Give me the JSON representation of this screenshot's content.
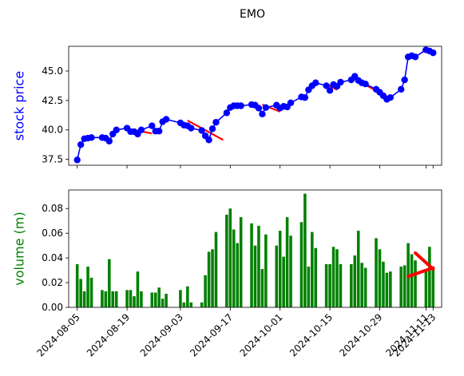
{
  "chart_data": [
    {
      "type": "line",
      "title": "EMO",
      "ylabel": "stock price",
      "ylabel_color": "#0000ff",
      "ylim": [
        37.0,
        47.1
      ],
      "yticks": [
        "37.5",
        "40.0",
        "42.5",
        "45.0"
      ],
      "ytick_values": [
        37.5,
        40.0,
        42.5,
        45.0
      ],
      "marker_color": "#0000ff",
      "line_color": "#0000ff",
      "trend_color": "#ff0000",
      "x": [
        "2024-08-05",
        "2024-08-06",
        "2024-08-07",
        "2024-08-08",
        "2024-08-09",
        "2024-08-12",
        "2024-08-13",
        "2024-08-14",
        "2024-08-15",
        "2024-08-16",
        "2024-08-19",
        "2024-08-20",
        "2024-08-21",
        "2024-08-22",
        "2024-08-23",
        "2024-08-26",
        "2024-08-27",
        "2024-08-28",
        "2024-08-29",
        "2024-08-30",
        "2024-09-03",
        "2024-09-04",
        "2024-09-05",
        "2024-09-06",
        "2024-09-09",
        "2024-09-10",
        "2024-09-11",
        "2024-09-12",
        "2024-09-13",
        "2024-09-16",
        "2024-09-17",
        "2024-09-18",
        "2024-09-19",
        "2024-09-20",
        "2024-09-23",
        "2024-09-24",
        "2024-09-25",
        "2024-09-26",
        "2024-09-27",
        "2024-09-30",
        "2024-10-01",
        "2024-10-02",
        "2024-10-03",
        "2024-10-04",
        "2024-10-07",
        "2024-10-08",
        "2024-10-09",
        "2024-10-10",
        "2024-10-11",
        "2024-10-14",
        "2024-10-15",
        "2024-10-16",
        "2024-10-17",
        "2024-10-18",
        "2024-10-21",
        "2024-10-22",
        "2024-10-23",
        "2024-10-24",
        "2024-10-25",
        "2024-10-28",
        "2024-10-29",
        "2024-10-30",
        "2024-10-31",
        "2024-11-01",
        "2024-11-04",
        "2024-11-05",
        "2024-11-06",
        "2024-11-07",
        "2024-11-08",
        "2024-11-11",
        "2024-11-12",
        "2024-11-13"
      ],
      "series": [
        {
          "values": [
            37.45,
            38.75,
            39.25,
            39.3,
            39.35,
            39.35,
            39.3,
            39.05,
            39.65,
            40.0,
            40.15,
            39.85,
            39.85,
            39.65,
            40.0,
            40.35,
            39.9,
            39.9,
            40.7,
            40.9,
            40.6,
            40.4,
            40.35,
            40.15,
            39.95,
            39.5,
            39.15,
            40.1,
            40.65,
            41.45,
            41.9,
            42.05,
            42.05,
            42.05,
            42.15,
            42.1,
            41.85,
            41.35,
            41.9,
            42.1,
            41.85,
            42.0,
            41.95,
            42.3,
            42.8,
            42.75,
            43.4,
            43.75,
            44.0,
            43.75,
            43.35,
            43.85,
            43.7,
            44.05,
            44.25,
            44.55,
            44.2,
            44.0,
            43.9,
            43.45,
            43.2,
            42.9,
            42.6,
            42.75,
            43.45,
            44.25,
            46.2,
            46.3,
            46.2,
            46.8,
            46.7,
            46.55
          ]
        }
      ],
      "trend_segments": [
        {
          "x0": "2024-08-20",
          "y0": 40.05,
          "x1": "2024-08-26",
          "y1": 39.7
        },
        {
          "x0": "2024-09-05",
          "y0": 40.8,
          "x1": "2024-09-15",
          "y1": 39.15
        },
        {
          "x0": "2024-09-26",
          "y0": 42.15,
          "x1": "2024-10-01",
          "y1": 41.55
        },
        {
          "x0": "2024-10-14",
          "y0": 43.9,
          "x1": "2024-10-17",
          "y1": 43.4
        },
        {
          "x0": "2024-10-22",
          "y0": 44.3,
          "x1": "2024-11-01",
          "y1": 42.7
        },
        {
          "x0": "2024-11-10",
          "y0": 46.75,
          "x1": "2024-11-13",
          "y1": 46.45
        }
      ]
    },
    {
      "type": "bar",
      "ylabel": "volume (m)",
      "ylabel_color": "#008000",
      "ylim": [
        0,
        0.095
      ],
      "yticks": [
        "0.00",
        "0.02",
        "0.04",
        "0.06",
        "0.08"
      ],
      "ytick_values": [
        0.0,
        0.02,
        0.04,
        0.06,
        0.08
      ],
      "bar_color": "#008000",
      "trend_color": "#ff0000",
      "xtick_labels": [
        "2024-08-05",
        "2024-08-19",
        "2024-09-03",
        "2024-09-17",
        "2024-10-01",
        "2024-10-15",
        "2024-10-29",
        "2024-11-11",
        "2024-11-13"
      ],
      "x": [
        "2024-08-05",
        "2024-08-06",
        "2024-08-07",
        "2024-08-08",
        "2024-08-09",
        "2024-08-12",
        "2024-08-13",
        "2024-08-14",
        "2024-08-15",
        "2024-08-16",
        "2024-08-19",
        "2024-08-20",
        "2024-08-21",
        "2024-08-22",
        "2024-08-23",
        "2024-08-26",
        "2024-08-27",
        "2024-08-28",
        "2024-08-29",
        "2024-08-30",
        "2024-09-03",
        "2024-09-04",
        "2024-09-05",
        "2024-09-06",
        "2024-09-09",
        "2024-09-10",
        "2024-09-11",
        "2024-09-12",
        "2024-09-13",
        "2024-09-16",
        "2024-09-17",
        "2024-09-18",
        "2024-09-19",
        "2024-09-20",
        "2024-09-23",
        "2024-09-24",
        "2024-09-25",
        "2024-09-26",
        "2024-09-27",
        "2024-09-30",
        "2024-10-01",
        "2024-10-02",
        "2024-10-03",
        "2024-10-04",
        "2024-10-07",
        "2024-10-08",
        "2024-10-09",
        "2024-10-10",
        "2024-10-11",
        "2024-10-14",
        "2024-10-15",
        "2024-10-16",
        "2024-10-17",
        "2024-10-18",
        "2024-10-21",
        "2024-10-22",
        "2024-10-23",
        "2024-10-24",
        "2024-10-25",
        "2024-10-28",
        "2024-10-29",
        "2024-10-30",
        "2024-10-31",
        "2024-11-01",
        "2024-11-04",
        "2024-11-05",
        "2024-11-06",
        "2024-11-07",
        "2024-11-08",
        "2024-11-11",
        "2024-11-12",
        "2024-11-13"
      ],
      "values": [
        0.035,
        0.023,
        0.013,
        0.033,
        0.024,
        0.014,
        0.013,
        0.039,
        0.013,
        0.013,
        0.014,
        0.014,
        0.009,
        0.029,
        0.013,
        0.012,
        0.012,
        0.016,
        0.007,
        0.011,
        0.014,
        0.004,
        0.017,
        0.004,
        0.004,
        0.026,
        0.045,
        0.047,
        0.061,
        0.075,
        0.08,
        0.063,
        0.052,
        0.073,
        0.068,
        0.05,
        0.066,
        0.031,
        0.059,
        0.05,
        0.062,
        0.041,
        0.073,
        0.058,
        0.069,
        0.092,
        0.033,
        0.061,
        0.048,
        0.035,
        0.035,
        0.049,
        0.047,
        0.035,
        0.035,
        0.042,
        0.062,
        0.036,
        0.032,
        0.056,
        0.047,
        0.037,
        0.028,
        0.029,
        0.033,
        0.034,
        0.052,
        0.043,
        0.038,
        0.031,
        0.049,
        0.032
      ],
      "trend_segments": [
        {
          "x0": "2024-11-06",
          "y0": 0.025,
          "x1": "2024-11-13",
          "y1": 0.032
        },
        {
          "x0": "2024-11-08",
          "y0": 0.044,
          "x1": "2024-11-13",
          "y1": 0.031
        }
      ]
    }
  ]
}
